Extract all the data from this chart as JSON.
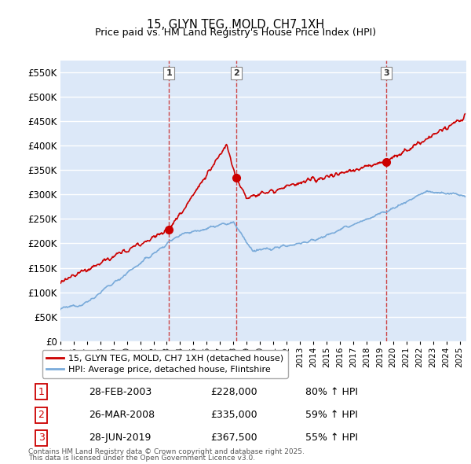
{
  "title": "15, GLYN TEG, MOLD, CH7 1XH",
  "subtitle": "Price paid vs. HM Land Registry's House Price Index (HPI)",
  "ylabel_ticks": [
    "£0",
    "£50K",
    "£100K",
    "£150K",
    "£200K",
    "£250K",
    "£300K",
    "£350K",
    "£400K",
    "£450K",
    "£500K",
    "£550K"
  ],
  "ytick_values": [
    0,
    50000,
    100000,
    150000,
    200000,
    250000,
    300000,
    350000,
    400000,
    450000,
    500000,
    550000
  ],
  "ylim": [
    0,
    575000
  ],
  "xlim_start": 1995.0,
  "xlim_end": 2025.5,
  "background_color": "#dce8f8",
  "legend_entry1": "15, GLYN TEG, MOLD, CH7 1XH (detached house)",
  "legend_entry2": "HPI: Average price, detached house, Flintshire",
  "transactions": [
    {
      "num": 1,
      "date": "28-FEB-2003",
      "price": 228000,
      "price_str": "£228,000",
      "year": 2003.16,
      "pct": "80%",
      "dir": "↑"
    },
    {
      "num": 2,
      "date": "26-MAR-2008",
      "price": 335000,
      "price_str": "£335,000",
      "year": 2008.23,
      "pct": "59%",
      "dir": "↑"
    },
    {
      "num": 3,
      "date": "28-JUN-2019",
      "price": 367500,
      "price_str": "£367,500",
      "year": 2019.49,
      "pct": "55%",
      "dir": "↑"
    }
  ],
  "footer_line1": "Contains HM Land Registry data © Crown copyright and database right 2025.",
  "footer_line2": "This data is licensed under the Open Government Licence v3.0.",
  "red_line_color": "#cc0000",
  "blue_line_color": "#7aabda",
  "vline_color": "#cc3333",
  "grid_color": "#ffffff",
  "xtick_years": [
    1995,
    1996,
    1997,
    1998,
    1999,
    2000,
    2001,
    2002,
    2003,
    2004,
    2005,
    2006,
    2007,
    2008,
    2009,
    2010,
    2011,
    2012,
    2013,
    2014,
    2015,
    2016,
    2017,
    2018,
    2019,
    2020,
    2021,
    2022,
    2023,
    2024,
    2025
  ]
}
